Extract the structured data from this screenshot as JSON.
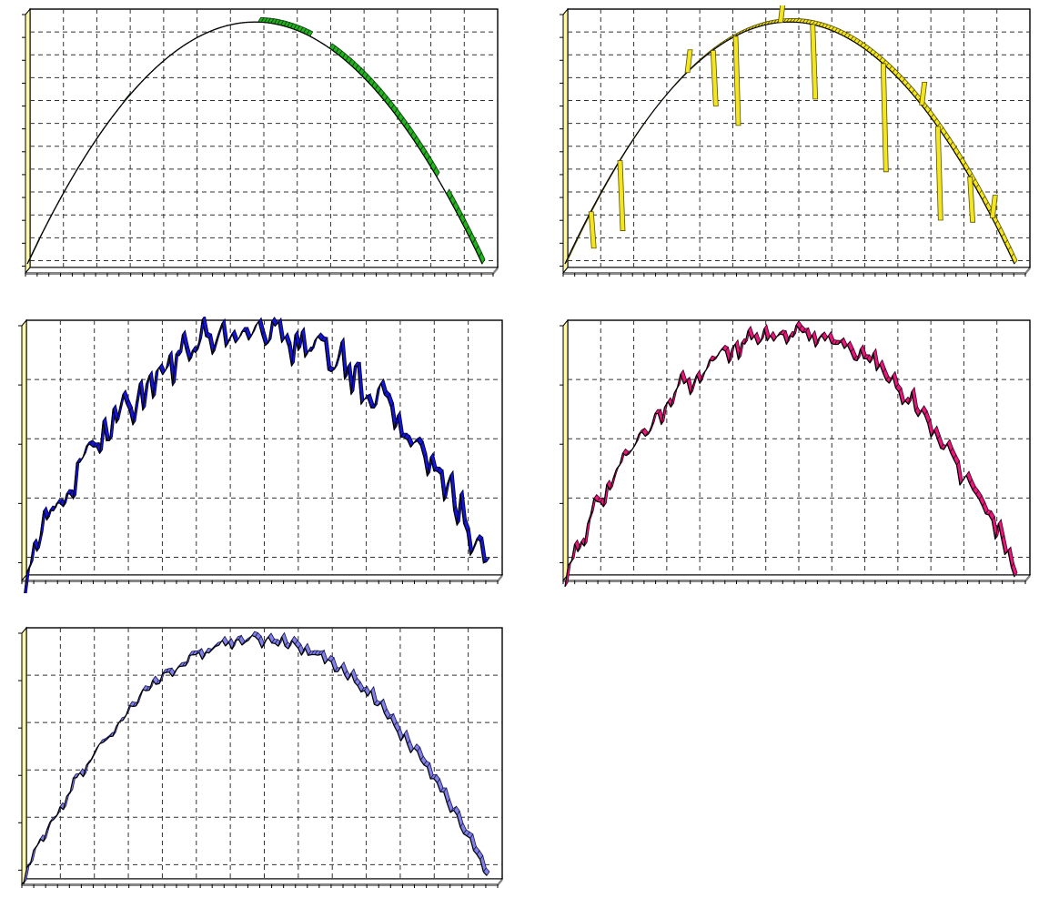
{
  "chart_data": [
    {
      "type": "area",
      "variant": "3d-ribbon",
      "color": "#22b01e",
      "edge": "#0a3d0a",
      "baseline_color": "#000000",
      "base_wall_color": "#fff9a8",
      "curve": "parabola",
      "noise": 0.0,
      "dropouts": true,
      "spikes": 0,
      "xlim": [
        0,
        1
      ],
      "ylim": [
        0,
        1
      ],
      "x_gridlines": 14,
      "y_gridlines": 11,
      "grid": true,
      "legend": "none"
    },
    {
      "type": "area",
      "variant": "3d-ribbon",
      "color": "#f4e521",
      "edge": "#5a5200",
      "baseline_color": "#000000",
      "base_wall_color": "#fff9a8",
      "curve": "parabola",
      "noise": 0.0,
      "dropouts": false,
      "spikes": 12,
      "xlim": [
        0,
        1
      ],
      "ylim": [
        0,
        1
      ],
      "x_gridlines": 14,
      "y_gridlines": 11,
      "grid": true,
      "legend": "none"
    },
    {
      "type": "area",
      "variant": "3d-ribbon",
      "color": "#1515d6",
      "edge": "#00003a",
      "baseline_color": "#000000",
      "base_wall_color": "#fff9a8",
      "curve": "parabola",
      "noise": 0.16,
      "dropouts": false,
      "spikes": 0,
      "xlim": [
        0,
        1
      ],
      "ylim": [
        0,
        1
      ],
      "x_gridlines": 14,
      "y_gridlines": 4,
      "grid": true,
      "legend": "none"
    },
    {
      "type": "area",
      "variant": "3d-ribbon",
      "color": "#e8177a",
      "edge": "#3a0020",
      "baseline_color": "#000000",
      "base_wall_color": "#fff9a8",
      "curve": "parabola",
      "noise": 0.09,
      "dropouts": false,
      "spikes": 0,
      "xlim": [
        0,
        1
      ],
      "ylim": [
        0,
        1
      ],
      "x_gridlines": 14,
      "y_gridlines": 4,
      "grid": true,
      "legend": "none"
    },
    {
      "type": "area",
      "variant": "3d-ribbon",
      "color": "#8080e6",
      "edge": "#1a1a55",
      "baseline_color": "#000000",
      "base_wall_color": "#fff9a8",
      "curve": "parabola",
      "noise": 0.05,
      "dropouts": false,
      "spikes": 0,
      "xlim": [
        0,
        1
      ],
      "ylim": [
        0,
        1
      ],
      "x_gridlines": 14,
      "y_gridlines": 5,
      "grid": true,
      "legend": "none"
    }
  ]
}
